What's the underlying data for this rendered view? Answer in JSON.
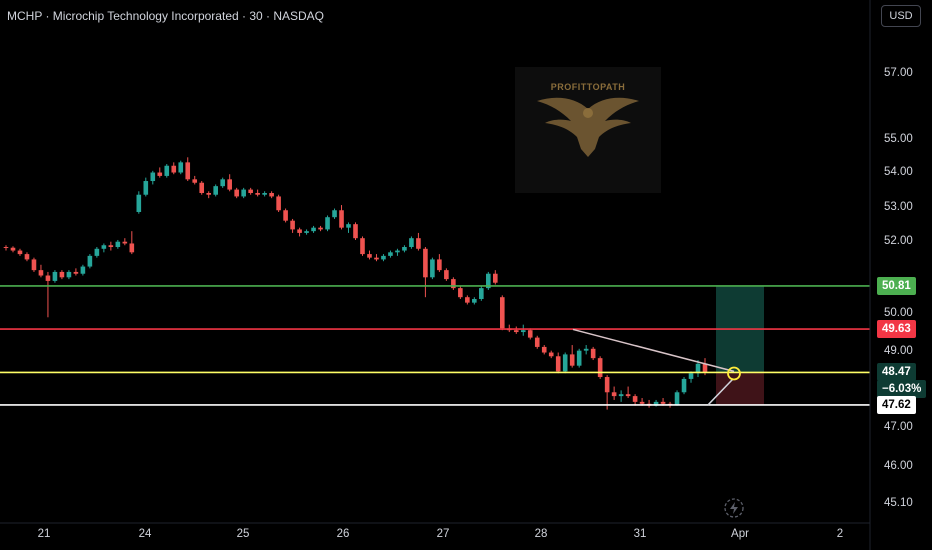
{
  "header": {
    "title": "MCHP · Microchip Technology Incorporated · 30 · NASDAQ",
    "currency_button": "USD"
  },
  "watermark": {
    "logo_text": "PROFITTOPATH",
    "icon": "eagle-logo"
  },
  "colors": {
    "up": "#26a69a",
    "down": "#ef5350",
    "background": "#000000"
  },
  "chart_data": {
    "type": "candlestick",
    "title": "MCHP · Microchip Technology Incorporated · 30 · NASDAQ",
    "x_ticks": [
      "21",
      "24",
      "25",
      "26",
      "27",
      "28",
      "31",
      "Apr",
      "2"
    ],
    "y_ticks": [
      57.0,
      55.0,
      54.0,
      53.0,
      52.0,
      50.0,
      49.0,
      47.0,
      46.0,
      45.1
    ],
    "y_scale": "log",
    "ylim": [
      44.9,
      58.0
    ],
    "horizontal_lines": [
      {
        "value": 50.81,
        "label": "50.81",
        "color": "#4caf50"
      },
      {
        "value": 49.63,
        "label": "49.63",
        "color": "#f23645"
      },
      {
        "value": 48.47,
        "label": "48.47",
        "sublabel": "−6.03%",
        "color": "#ffff66"
      },
      {
        "value": 47.62,
        "label": "47.62",
        "color": "#ffffff"
      }
    ],
    "position_tool": {
      "entry": 48.47,
      "target": 50.81,
      "stop": 47.62
    },
    "trendlines": [
      {
        "from": 49.62,
        "to": 48.5
      },
      {
        "from": 47.62,
        "to": 48.3
      }
    ],
    "ohlc": [
      [
        51.9,
        51.95,
        51.8,
        51.88
      ],
      [
        51.88,
        51.92,
        51.75,
        51.8
      ],
      [
        51.8,
        51.85,
        51.65,
        51.7
      ],
      [
        51.7,
        51.75,
        51.5,
        51.55
      ],
      [
        51.55,
        51.6,
        51.2,
        51.25
      ],
      [
        51.25,
        51.4,
        51.05,
        51.1
      ],
      [
        51.1,
        51.2,
        49.95,
        50.95
      ],
      [
        50.95,
        51.25,
        50.9,
        51.2
      ],
      [
        51.2,
        51.25,
        51.0,
        51.05
      ],
      [
        51.05,
        51.25,
        51.0,
        51.2
      ],
      [
        51.2,
        51.3,
        51.1,
        51.15
      ],
      [
        51.15,
        51.4,
        51.1,
        51.35
      ],
      [
        51.35,
        51.7,
        51.3,
        51.65
      ],
      [
        51.65,
        51.9,
        51.6,
        51.85
      ],
      [
        51.85,
        52.0,
        51.75,
        51.95
      ],
      [
        51.95,
        52.05,
        51.8,
        51.9
      ],
      [
        51.9,
        52.1,
        51.85,
        52.05
      ],
      [
        52.05,
        52.15,
        51.95,
        52.0
      ],
      [
        52.0,
        52.35,
        51.7,
        51.75
      ],
      [
        52.9,
        53.5,
        52.85,
        53.4
      ],
      [
        53.4,
        53.9,
        53.35,
        53.8
      ],
      [
        53.8,
        54.1,
        53.7,
        54.05
      ],
      [
        54.05,
        54.2,
        53.9,
        53.95
      ],
      [
        53.95,
        54.3,
        53.9,
        54.25
      ],
      [
        54.25,
        54.35,
        54.0,
        54.05
      ],
      [
        54.05,
        54.4,
        54.0,
        54.35
      ],
      [
        54.35,
        54.5,
        53.8,
        53.85
      ],
      [
        53.85,
        53.95,
        53.7,
        53.75
      ],
      [
        53.75,
        53.8,
        53.4,
        53.45
      ],
      [
        53.45,
        53.5,
        53.3,
        53.4
      ],
      [
        53.4,
        53.7,
        53.35,
        53.65
      ],
      [
        53.65,
        53.9,
        53.6,
        53.85
      ],
      [
        53.85,
        54.0,
        53.5,
        53.55
      ],
      [
        53.55,
        53.6,
        53.3,
        53.35
      ],
      [
        53.35,
        53.6,
        53.3,
        53.55
      ],
      [
        53.55,
        53.6,
        53.4,
        53.45
      ],
      [
        53.45,
        53.55,
        53.35,
        53.4
      ],
      [
        53.4,
        53.5,
        53.35,
        53.45
      ],
      [
        53.45,
        53.5,
        53.3,
        53.35
      ],
      [
        53.35,
        53.4,
        52.9,
        52.95
      ],
      [
        52.95,
        53.0,
        52.6,
        52.65
      ],
      [
        52.65,
        52.7,
        52.3,
        52.4
      ],
      [
        52.4,
        52.45,
        52.2,
        52.3
      ],
      [
        52.3,
        52.4,
        52.25,
        52.35
      ],
      [
        52.35,
        52.5,
        52.3,
        52.45
      ],
      [
        52.45,
        52.5,
        52.35,
        52.4
      ],
      [
        52.4,
        52.8,
        52.35,
        52.75
      ],
      [
        52.75,
        53.0,
        52.7,
        52.95
      ],
      [
        52.95,
        53.1,
        52.4,
        52.45
      ],
      [
        52.45,
        52.6,
        52.3,
        52.55
      ],
      [
        52.55,
        52.6,
        52.1,
        52.15
      ],
      [
        52.15,
        52.2,
        51.65,
        51.7
      ],
      [
        51.7,
        51.8,
        51.55,
        51.6
      ],
      [
        51.6,
        51.7,
        51.5,
        51.55
      ],
      [
        51.55,
        51.7,
        51.5,
        51.65
      ],
      [
        51.65,
        51.8,
        51.6,
        51.75
      ],
      [
        51.75,
        51.85,
        51.65,
        51.8
      ],
      [
        51.8,
        51.95,
        51.75,
        51.9
      ],
      [
        51.9,
        52.2,
        51.85,
        52.15
      ],
      [
        52.15,
        52.3,
        51.8,
        51.85
      ],
      [
        51.85,
        51.9,
        50.5,
        51.05
      ],
      [
        51.05,
        51.6,
        51.0,
        51.55
      ],
      [
        51.55,
        51.7,
        51.2,
        51.25
      ],
      [
        51.25,
        51.3,
        50.95,
        51.0
      ],
      [
        51.0,
        51.05,
        50.7,
        50.75
      ],
      [
        50.75,
        50.8,
        50.45,
        50.5
      ],
      [
        50.5,
        50.55,
        50.3,
        50.35
      ],
      [
        50.35,
        50.5,
        50.3,
        50.45
      ],
      [
        50.45,
        50.8,
        50.4,
        50.75
      ],
      [
        50.75,
        51.2,
        50.7,
        51.15
      ],
      [
        51.15,
        51.25,
        50.85,
        50.9
      ],
      [
        50.5,
        50.55,
        49.6,
        49.65
      ],
      [
        49.65,
        49.75,
        49.55,
        49.6
      ],
      [
        49.6,
        49.7,
        49.5,
        49.55
      ],
      [
        49.55,
        49.75,
        49.45,
        49.6
      ],
      [
        49.6,
        49.65,
        49.35,
        49.4
      ],
      [
        49.4,
        49.45,
        49.1,
        49.15
      ],
      [
        49.15,
        49.2,
        48.95,
        49.0
      ],
      [
        49.0,
        49.05,
        48.85,
        48.9
      ],
      [
        48.9,
        49.0,
        48.45,
        48.5
      ],
      [
        48.5,
        49.0,
        48.45,
        48.95
      ],
      [
        48.95,
        49.2,
        48.6,
        48.65
      ],
      [
        48.65,
        49.1,
        48.6,
        49.05
      ],
      [
        49.05,
        49.2,
        48.95,
        49.1
      ],
      [
        49.1,
        49.15,
        48.8,
        48.85
      ],
      [
        48.85,
        48.9,
        48.3,
        48.35
      ],
      [
        48.35,
        48.4,
        47.5,
        47.95
      ],
      [
        47.95,
        48.1,
        47.75,
        47.85
      ],
      [
        47.85,
        48.0,
        47.7,
        47.9
      ],
      [
        47.9,
        48.1,
        47.8,
        47.85
      ],
      [
        47.85,
        47.9,
        47.6,
        47.7
      ],
      [
        47.7,
        47.8,
        47.6,
        47.65
      ],
      [
        47.65,
        47.75,
        47.55,
        47.6
      ],
      [
        47.6,
        47.75,
        47.58,
        47.7
      ],
      [
        47.7,
        47.8,
        47.6,
        47.65
      ],
      [
        47.65,
        47.7,
        47.55,
        47.62
      ],
      [
        47.62,
        48.0,
        47.6,
        47.95
      ],
      [
        47.95,
        48.35,
        47.9,
        48.3
      ],
      [
        48.3,
        48.5,
        48.2,
        48.45
      ],
      [
        48.45,
        48.8,
        48.35,
        48.7
      ],
      [
        48.7,
        48.85,
        48.4,
        48.47
      ]
    ]
  }
}
